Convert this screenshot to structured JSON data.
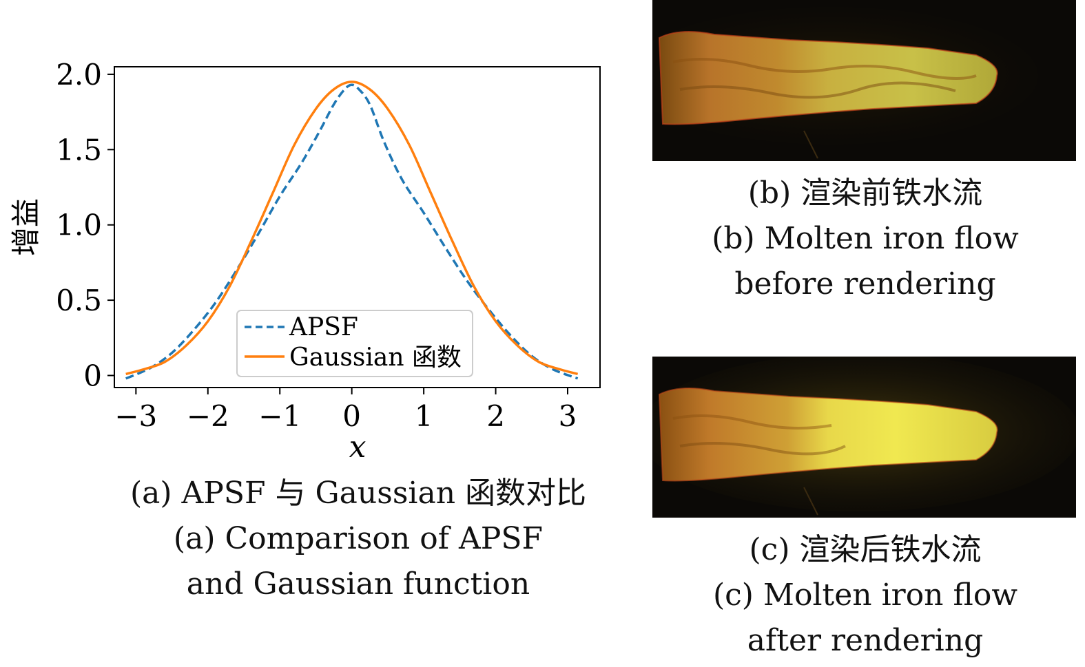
{
  "chart_data": {
    "type": "line",
    "ylabel": "增益",
    "xlabel": "x",
    "xlim": [
      -3.3,
      3.45
    ],
    "ylim": [
      -0.08,
      2.05
    ],
    "xticks": [
      -3,
      -2,
      -1,
      0,
      1,
      2,
      3
    ],
    "xtick_labels": [
      "−3",
      "−2",
      "−1",
      "0",
      "1",
      "2",
      "3"
    ],
    "yticks": [
      0,
      0.5,
      1.0,
      1.5,
      2.0
    ],
    "ytick_labels": [
      "0",
      "0.5",
      "1.0",
      "1.5",
      "2.0"
    ],
    "grid": false,
    "legend_position": "lower-center",
    "series": [
      {
        "name": "APSF",
        "style": "dashed",
        "color": "#1f77b4",
        "x": [
          -3.14,
          -2.8,
          -2.5,
          -2.2,
          -1.9,
          -1.6,
          -1.3,
          -1.0,
          -0.7,
          -0.45,
          -0.25,
          -0.1,
          0.0,
          0.1,
          0.25,
          0.45,
          0.7,
          1.0,
          1.3,
          1.6,
          1.9,
          2.2,
          2.5,
          2.8,
          3.14
        ],
        "y": [
          -0.02,
          0.05,
          0.15,
          0.3,
          0.48,
          0.7,
          0.94,
          1.19,
          1.41,
          1.62,
          1.8,
          1.9,
          1.93,
          1.9,
          1.8,
          1.55,
          1.3,
          1.08,
          0.85,
          0.63,
          0.44,
          0.27,
          0.13,
          0.04,
          -0.02
        ]
      },
      {
        "name": "Gaussian 函数",
        "style": "solid",
        "color": "#ff7f0e",
        "x": [
          -3.14,
          -2.9,
          -2.6,
          -2.3,
          -2.0,
          -1.7,
          -1.4,
          -1.1,
          -0.8,
          -0.5,
          -0.25,
          0.0,
          0.25,
          0.5,
          0.8,
          1.1,
          1.4,
          1.7,
          2.0,
          2.3,
          2.6,
          2.9,
          3.14
        ],
        "y": [
          0.01,
          0.04,
          0.09,
          0.2,
          0.36,
          0.59,
          0.89,
          1.21,
          1.53,
          1.77,
          1.9,
          1.95,
          1.9,
          1.77,
          1.53,
          1.21,
          0.89,
          0.59,
          0.36,
          0.2,
          0.09,
          0.04,
          0.01
        ]
      }
    ]
  },
  "captions": {
    "a": {
      "line1": "(a) APSF 与 Gaussian 函数对比",
      "line2": "(a) Comparison of APSF",
      "line3": "and Gaussian function"
    },
    "b": {
      "line1": "(b) 渲染前铁水流",
      "line2": "(b) Molten iron flow",
      "line3": "before rendering"
    },
    "c": {
      "line1": "(c) 渲染后铁水流",
      "line2": "(c) Molten iron flow",
      "line3": "after rendering"
    }
  },
  "images": {
    "b": {
      "icon": "molten-iron-flow-photo",
      "brightness": "normal"
    },
    "c": {
      "icon": "molten-iron-flow-photo",
      "brightness": "enhanced"
    }
  }
}
